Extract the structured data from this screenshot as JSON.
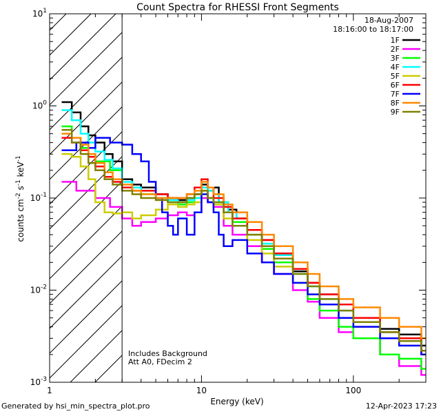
{
  "chart_data": {
    "type": "line",
    "title": "Count Spectra for RHESSI Front Segments",
    "xlabel": "Energy (keV)",
    "ylabel": "counts cm-2 s-1 keV-1",
    "xscale": "log",
    "yscale": "log",
    "xlim": [
      1,
      300
    ],
    "ylim": [
      0.001,
      10
    ],
    "x_ticks": [
      {
        "value": 1,
        "label": "1"
      },
      {
        "value": 10,
        "label": "10"
      },
      {
        "value": 100,
        "label": "100"
      }
    ],
    "y_ticks": [
      {
        "value": 10,
        "base": "10",
        "exp": "1"
      },
      {
        "value": 1,
        "base": "10",
        "exp": "0"
      },
      {
        "value": 0.1,
        "base": "10",
        "exp": "-1"
      },
      {
        "value": 0.01,
        "base": "10",
        "exp": "-2"
      },
      {
        "value": 0.001,
        "base": "10",
        "exp": "-3"
      }
    ],
    "legend_position": "top-right",
    "date_label": "18-Aug-2007",
    "time_range_label": "18:16:00 to 18:17:00",
    "attenuator_threshold_kev": 3,
    "annotations": [
      "Includes Background",
      "Att A0, FDecim 2"
    ],
    "series": [
      {
        "name": "1F",
        "color": "#000000",
        "values": [
          [
            1.2,
            1.1
          ],
          [
            1.4,
            0.85
          ],
          [
            1.6,
            0.6
          ],
          [
            1.8,
            0.48
          ],
          [
            2.0,
            0.4
          ],
          [
            2.3,
            0.3
          ],
          [
            2.6,
            0.25
          ],
          [
            3.0,
            0.16
          ],
          [
            3.5,
            0.14
          ],
          [
            4.0,
            0.13
          ],
          [
            5.0,
            0.11
          ],
          [
            6.0,
            0.1
          ],
          [
            7.0,
            0.095
          ],
          [
            8.0,
            0.1
          ],
          [
            9.0,
            0.11
          ],
          [
            10.0,
            0.14
          ],
          [
            11.0,
            0.12
          ],
          [
            12.0,
            0.13
          ],
          [
            13.0,
            0.09
          ],
          [
            15.0,
            0.075
          ],
          [
            17.0,
            0.06
          ],
          [
            20.0,
            0.045
          ],
          [
            25.0,
            0.035
          ],
          [
            30.0,
            0.025
          ],
          [
            40.0,
            0.016
          ],
          [
            50.0,
            0.012
          ],
          [
            60.0,
            0.009
          ],
          [
            80.0,
            0.007
          ],
          [
            100.0,
            0.005
          ],
          [
            150.0,
            0.0038
          ],
          [
            200.0,
            0.0033
          ],
          [
            280.0,
            0.0025
          ]
        ]
      },
      {
        "name": "2F",
        "color": "#ff00ff",
        "values": [
          [
            1.2,
            0.15
          ],
          [
            1.5,
            0.12
          ],
          [
            2.0,
            0.1
          ],
          [
            2.5,
            0.08
          ],
          [
            3.0,
            0.06
          ],
          [
            3.5,
            0.05
          ],
          [
            4.0,
            0.055
          ],
          [
            5.0,
            0.06
          ],
          [
            6.0,
            0.065
          ],
          [
            7.0,
            0.07
          ],
          [
            8.0,
            0.065
          ],
          [
            9.0,
            0.07
          ],
          [
            10.0,
            0.1
          ],
          [
            11.0,
            0.09
          ],
          [
            12.0,
            0.08
          ],
          [
            14.0,
            0.05
          ],
          [
            16.0,
            0.04
          ],
          [
            20.0,
            0.03
          ],
          [
            25.0,
            0.02
          ],
          [
            30.0,
            0.015
          ],
          [
            40.0,
            0.01
          ],
          [
            50.0,
            0.0075
          ],
          [
            60.0,
            0.005
          ],
          [
            80.0,
            0.0035
          ],
          [
            100.0,
            0.003
          ],
          [
            150.0,
            0.002
          ],
          [
            200.0,
            0.0015
          ],
          [
            280.0,
            0.0012
          ]
        ]
      },
      {
        "name": "3F",
        "color": "#00ff00",
        "values": [
          [
            1.2,
            0.6
          ],
          [
            1.4,
            0.45
          ],
          [
            1.6,
            0.35
          ],
          [
            1.8,
            0.3
          ],
          [
            2.0,
            0.25
          ],
          [
            2.5,
            0.2
          ],
          [
            3.0,
            0.13
          ],
          [
            3.5,
            0.12
          ],
          [
            4.0,
            0.11
          ],
          [
            5.0,
            0.1
          ],
          [
            6.0,
            0.09
          ],
          [
            7.0,
            0.085
          ],
          [
            8.0,
            0.09
          ],
          [
            9.0,
            0.1
          ],
          [
            10.0,
            0.13
          ],
          [
            11.0,
            0.1
          ],
          [
            12.0,
            0.09
          ],
          [
            14.0,
            0.07
          ],
          [
            16.0,
            0.055
          ],
          [
            20.0,
            0.04
          ],
          [
            25.0,
            0.028
          ],
          [
            30.0,
            0.02
          ],
          [
            40.0,
            0.012
          ],
          [
            50.0,
            0.008
          ],
          [
            60.0,
            0.006
          ],
          [
            80.0,
            0.004
          ],
          [
            100.0,
            0.003
          ],
          [
            150.0,
            0.002
          ],
          [
            200.0,
            0.0018
          ],
          [
            280.0,
            0.0014
          ]
        ]
      },
      {
        "name": "4F",
        "color": "#00ffff",
        "values": [
          [
            1.2,
            0.9
          ],
          [
            1.4,
            0.7
          ],
          [
            1.6,
            0.5
          ],
          [
            1.8,
            0.4
          ],
          [
            2.0,
            0.32
          ],
          [
            2.3,
            0.26
          ],
          [
            2.6,
            0.21
          ],
          [
            3.0,
            0.15
          ],
          [
            3.5,
            0.13
          ],
          [
            4.0,
            0.12
          ],
          [
            5.0,
            0.1
          ],
          [
            6.0,
            0.095
          ],
          [
            7.0,
            0.09
          ],
          [
            8.0,
            0.095
          ],
          [
            9.0,
            0.1
          ],
          [
            10.0,
            0.13
          ],
          [
            11.0,
            0.12
          ],
          [
            12.0,
            0.11
          ],
          [
            13.0,
            0.09
          ],
          [
            15.0,
            0.07
          ],
          [
            17.0,
            0.06
          ],
          [
            20.0,
            0.045
          ],
          [
            25.0,
            0.032
          ],
          [
            30.0,
            0.024
          ],
          [
            40.0,
            0.015
          ],
          [
            50.0,
            0.011
          ],
          [
            60.0,
            0.008
          ],
          [
            80.0,
            0.006
          ],
          [
            100.0,
            0.0045
          ],
          [
            150.0,
            0.0035
          ],
          [
            200.0,
            0.003
          ],
          [
            280.0,
            0.0022
          ]
        ]
      },
      {
        "name": "5F",
        "color": "#cccc00",
        "values": [
          [
            1.2,
            0.3
          ],
          [
            1.4,
            0.28
          ],
          [
            1.6,
            0.22
          ],
          [
            1.8,
            0.16
          ],
          [
            2.0,
            0.09
          ],
          [
            2.3,
            0.07
          ],
          [
            2.6,
            0.068
          ],
          [
            3.0,
            0.07
          ],
          [
            3.5,
            0.06
          ],
          [
            4.0,
            0.065
          ],
          [
            5.0,
            0.075
          ],
          [
            6.0,
            0.085
          ],
          [
            7.0,
            0.08
          ],
          [
            8.0,
            0.085
          ],
          [
            9.0,
            0.09
          ],
          [
            10.0,
            0.12
          ],
          [
            11.0,
            0.1
          ],
          [
            12.0,
            0.085
          ],
          [
            14.0,
            0.06
          ],
          [
            16.0,
            0.05
          ],
          [
            20.0,
            0.035
          ],
          [
            25.0,
            0.025
          ],
          [
            30.0,
            0.018
          ],
          [
            40.0,
            0.012
          ],
          [
            50.0,
            0.009
          ],
          [
            60.0,
            0.007
          ],
          [
            80.0,
            0.005
          ],
          [
            100.0,
            0.004
          ],
          [
            150.0,
            0.003
          ],
          [
            200.0,
            0.0025
          ],
          [
            280.0,
            0.002
          ]
        ]
      },
      {
        "name": "6F",
        "color": "#ff0000",
        "values": [
          [
            1.2,
            0.45
          ],
          [
            1.4,
            0.4
          ],
          [
            1.6,
            0.33
          ],
          [
            1.8,
            0.28
          ],
          [
            2.0,
            0.22
          ],
          [
            2.3,
            0.17
          ],
          [
            2.6,
            0.15
          ],
          [
            3.0,
            0.13
          ],
          [
            3.5,
            0.12
          ],
          [
            4.0,
            0.12
          ],
          [
            5.0,
            0.11
          ],
          [
            6.0,
            0.1
          ],
          [
            7.0,
            0.1
          ],
          [
            8.0,
            0.11
          ],
          [
            9.0,
            0.13
          ],
          [
            10.0,
            0.16
          ],
          [
            11.0,
            0.13
          ],
          [
            12.0,
            0.1
          ],
          [
            14.0,
            0.08
          ],
          [
            16.0,
            0.06
          ],
          [
            20.0,
            0.045
          ],
          [
            25.0,
            0.035
          ],
          [
            30.0,
            0.025
          ],
          [
            40.0,
            0.017
          ],
          [
            50.0,
            0.012
          ],
          [
            60.0,
            0.009
          ],
          [
            80.0,
            0.007
          ],
          [
            100.0,
            0.005
          ],
          [
            150.0,
            0.0035
          ],
          [
            200.0,
            0.003
          ],
          [
            280.0,
            0.002
          ]
        ]
      },
      {
        "name": "7F",
        "color": "#0000ff",
        "values": [
          [
            1.2,
            0.33
          ],
          [
            1.5,
            0.4
          ],
          [
            1.8,
            0.35
          ],
          [
            2.0,
            0.45
          ],
          [
            2.5,
            0.4
          ],
          [
            3.0,
            0.38
          ],
          [
            3.5,
            0.3
          ],
          [
            4.0,
            0.25
          ],
          [
            4.5,
            0.15
          ],
          [
            5.0,
            0.1
          ],
          [
            5.5,
            0.07
          ],
          [
            6.0,
            0.05
          ],
          [
            6.5,
            0.04
          ],
          [
            7.0,
            0.06
          ],
          [
            8.0,
            0.04
          ],
          [
            9.0,
            0.07
          ],
          [
            10.0,
            0.11
          ],
          [
            11.0,
            0.09
          ],
          [
            12.0,
            0.07
          ],
          [
            13.0,
            0.04
          ],
          [
            14.0,
            0.03
          ],
          [
            16.0,
            0.035
          ],
          [
            20.0,
            0.025
          ],
          [
            25.0,
            0.02
          ],
          [
            30.0,
            0.015
          ],
          [
            40.0,
            0.012
          ],
          [
            50.0,
            0.009
          ],
          [
            60.0,
            0.007
          ],
          [
            80.0,
            0.005
          ],
          [
            100.0,
            0.004
          ],
          [
            150.0,
            0.003
          ],
          [
            200.0,
            0.0025
          ],
          [
            280.0,
            0.002
          ]
        ]
      },
      {
        "name": "8F",
        "color": "#ff8800",
        "values": [
          [
            1.2,
            0.5
          ],
          [
            1.4,
            0.45
          ],
          [
            1.6,
            0.38
          ],
          [
            1.8,
            0.3
          ],
          [
            2.0,
            0.24
          ],
          [
            2.3,
            0.19
          ],
          [
            2.6,
            0.16
          ],
          [
            3.0,
            0.14
          ],
          [
            3.5,
            0.12
          ],
          [
            4.0,
            0.11
          ],
          [
            5.0,
            0.1
          ],
          [
            6.0,
            0.1
          ],
          [
            7.0,
            0.1
          ],
          [
            8.0,
            0.11
          ],
          [
            9.0,
            0.12
          ],
          [
            10.0,
            0.15
          ],
          [
            11.0,
            0.13
          ],
          [
            12.0,
            0.11
          ],
          [
            14.0,
            0.085
          ],
          [
            16.0,
            0.07
          ],
          [
            20.0,
            0.055
          ],
          [
            25.0,
            0.04
          ],
          [
            30.0,
            0.03
          ],
          [
            40.0,
            0.02
          ],
          [
            50.0,
            0.015
          ],
          [
            60.0,
            0.011
          ],
          [
            80.0,
            0.008
          ],
          [
            100.0,
            0.0065
          ],
          [
            150.0,
            0.005
          ],
          [
            200.0,
            0.004
          ],
          [
            280.0,
            0.003
          ]
        ]
      },
      {
        "name": "9F",
        "color": "#808000",
        "values": [
          [
            1.2,
            0.55
          ],
          [
            1.4,
            0.4
          ],
          [
            1.6,
            0.3
          ],
          [
            1.8,
            0.24
          ],
          [
            2.0,
            0.2
          ],
          [
            2.3,
            0.16
          ],
          [
            2.6,
            0.14
          ],
          [
            3.0,
            0.12
          ],
          [
            3.5,
            0.11
          ],
          [
            4.0,
            0.1
          ],
          [
            5.0,
            0.095
          ],
          [
            6.0,
            0.09
          ],
          [
            7.0,
            0.09
          ],
          [
            8.0,
            0.1
          ],
          [
            9.0,
            0.11
          ],
          [
            10.0,
            0.12
          ],
          [
            11.0,
            0.1
          ],
          [
            12.0,
            0.09
          ],
          [
            14.0,
            0.07
          ],
          [
            16.0,
            0.05
          ],
          [
            20.0,
            0.04
          ],
          [
            25.0,
            0.03
          ],
          [
            30.0,
            0.022
          ],
          [
            40.0,
            0.015
          ],
          [
            50.0,
            0.011
          ],
          [
            60.0,
            0.008
          ],
          [
            80.0,
            0.006
          ],
          [
            100.0,
            0.0045
          ],
          [
            150.0,
            0.0035
          ],
          [
            200.0,
            0.0028
          ],
          [
            280.0,
            0.0022
          ]
        ]
      }
    ]
  },
  "footer": {
    "generated_by": "Generated by hsi_min_spectra_plot.pro",
    "timestamp": "12-Apr-2023 17:23"
  }
}
